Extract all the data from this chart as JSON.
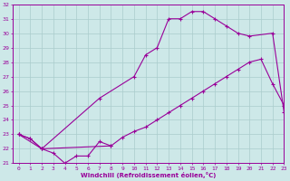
{
  "xlabel": "Windchill (Refroidissement éolien,°C)",
  "xlim": [
    -0.5,
    23
  ],
  "ylim": [
    21,
    32
  ],
  "xticks": [
    0,
    1,
    2,
    3,
    4,
    5,
    6,
    7,
    8,
    9,
    10,
    11,
    12,
    13,
    14,
    15,
    16,
    17,
    18,
    19,
    20,
    21,
    22,
    23
  ],
  "yticks": [
    21,
    22,
    23,
    24,
    25,
    26,
    27,
    28,
    29,
    30,
    31,
    32
  ],
  "bg_color": "#cde8e8",
  "line_color": "#990099",
  "grid_color": "#aacccc",
  "line1_x": [
    0,
    1,
    2,
    3,
    4,
    5,
    6,
    7,
    8
  ],
  "line1_y": [
    23,
    22.7,
    22,
    21.7,
    21,
    21.5,
    21.5,
    22.5,
    22.2
  ],
  "line2_x": [
    0,
    1,
    2,
    8,
    9,
    10,
    11,
    12,
    13,
    14,
    15,
    16,
    17,
    18,
    19,
    20,
    21,
    22,
    23
  ],
  "line2_y": [
    23,
    22.7,
    22,
    22.2,
    22.8,
    23.2,
    23.5,
    24.0,
    24.5,
    25.0,
    25.5,
    26.0,
    26.5,
    27.0,
    27.5,
    28.0,
    28.2,
    26.5,
    25.0
  ],
  "line3_x": [
    0,
    2,
    7,
    10,
    11,
    12,
    13,
    14,
    15,
    16,
    17,
    18,
    19,
    20,
    22,
    23
  ],
  "line3_y": [
    23,
    22,
    25.5,
    27.0,
    28.5,
    29.0,
    31.0,
    31.0,
    31.5,
    31.5,
    31.0,
    30.5,
    30.0,
    29.8,
    30.0,
    24.5
  ]
}
